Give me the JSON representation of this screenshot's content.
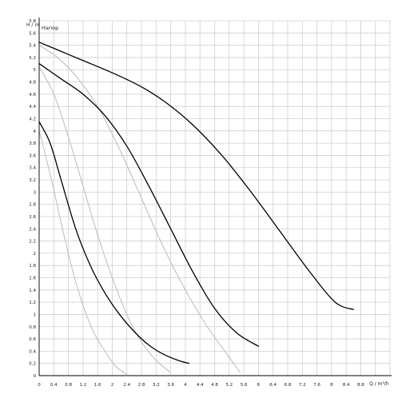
{
  "chart_data": {
    "type": "line",
    "title": "Напор",
    "xlabel": "Q / m³/h",
    "ylabel": "H / m",
    "xlim": [
      0,
      9.6
    ],
    "ylim": [
      0,
      5.8
    ],
    "grid": true,
    "legend": "none",
    "x_ticks": [
      "0",
      "0.4",
      "0.8",
      "1.2",
      "1.6",
      "2",
      "2.4",
      "2.8",
      "3.2",
      "3.6",
      "4",
      "4.4",
      "4.8",
      "5.2",
      "5.6",
      "6",
      "6.4",
      "6.8",
      "7.2",
      "7.6",
      "8",
      "8.4",
      "8.8"
    ],
    "y_ticks": [
      "0",
      "0.2",
      "0.4",
      "0.6",
      "0.8",
      "1",
      "1.2",
      "1.4",
      "1.6",
      "1.8",
      "2",
      "2.2",
      "2.4",
      "2.6",
      "2.8",
      "3",
      "3.2",
      "3.4",
      "3.6",
      "3.8",
      "4",
      "4.2",
      "4.4",
      "4.6",
      "4.8",
      "5",
      "5.2",
      "5.4",
      "5.6",
      "5.8"
    ],
    "series": [
      {
        "color": "#000000",
        "x": [
          0,
          0.6,
          1.2,
          2.0,
          2.8,
          3.5,
          4.2,
          5.0,
          5.8,
          6.6,
          7.4,
          8.1,
          8.6
        ],
        "y": [
          5.45,
          5.3,
          5.15,
          4.95,
          4.72,
          4.45,
          4.1,
          3.6,
          3.0,
          2.35,
          1.7,
          1.2,
          1.08
        ]
      },
      {
        "color": "#000000",
        "x": [
          0,
          0.6,
          1.2,
          1.8,
          2.4,
          3.0,
          3.6,
          4.2,
          4.8,
          5.4,
          6.0
        ],
        "y": [
          5.1,
          4.85,
          4.6,
          4.25,
          3.75,
          3.1,
          2.4,
          1.7,
          1.1,
          0.7,
          0.48
        ]
      },
      {
        "color": "#000000",
        "x": [
          0,
          0.3,
          0.6,
          1.0,
          1.4,
          1.8,
          2.2,
          2.6,
          3.0,
          3.4,
          3.8,
          4.1
        ],
        "y": [
          4.15,
          3.8,
          3.2,
          2.4,
          1.8,
          1.35,
          1.0,
          0.72,
          0.5,
          0.35,
          0.25,
          0.2
        ]
      },
      {
        "color": "#bbbbbb",
        "x": [
          0,
          0.5,
          1.0,
          1.6,
          2.2,
          2.8,
          3.4,
          4.0,
          4.6,
          5.2,
          5.5
        ],
        "y": [
          5.4,
          5.2,
          4.9,
          4.4,
          3.7,
          2.9,
          2.1,
          1.4,
          0.8,
          0.3,
          0.05
        ]
      },
      {
        "color": "#bbbbbb",
        "x": [
          0,
          0.4,
          0.8,
          1.2,
          1.6,
          2.0,
          2.4,
          2.8,
          3.2,
          3.6
        ],
        "y": [
          5.05,
          4.6,
          3.9,
          3.1,
          2.3,
          1.6,
          1.0,
          0.55,
          0.25,
          0.05
        ]
      },
      {
        "color": "#bbbbbb",
        "x": [
          0,
          0.3,
          0.6,
          0.9,
          1.2,
          1.5,
          1.8,
          2.1,
          2.4
        ],
        "y": [
          4.0,
          3.3,
          2.5,
          1.75,
          1.15,
          0.7,
          0.4,
          0.15,
          0.02
        ]
      }
    ]
  }
}
